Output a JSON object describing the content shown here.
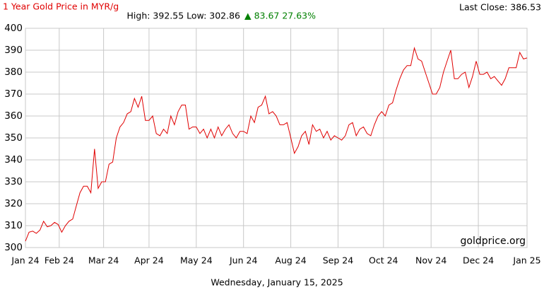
{
  "chart_data": {
    "type": "line",
    "title": "1 Year Gold Price in MYR/g",
    "last_close": "Last Close: 386.53",
    "high_low": "High: 392.55 Low: 302.86",
    "change": "▲ 83.67 27.63%",
    "watermark": "goldprice.org",
    "date": "Wednesday, January 15, 2025",
    "color": "#e00000",
    "grid": true,
    "values": [
      302.9,
      307,
      307.5,
      306.5,
      308,
      312,
      309.5,
      310,
      311.5,
      310.5,
      307,
      310,
      312,
      313,
      319,
      325,
      328,
      328,
      325,
      345,
      327,
      330,
      330,
      338,
      339,
      350,
      355,
      357,
      361,
      362,
      368,
      364,
      369,
      358,
      358,
      360,
      352,
      351,
      354,
      352,
      360,
      356,
      362,
      365,
      365,
      354,
      355,
      355,
      352,
      354,
      350,
      354,
      350,
      355,
      351,
      354,
      356,
      352,
      350,
      353,
      353,
      352,
      360,
      357,
      364,
      365,
      369,
      361,
      362,
      360,
      356,
      356,
      357,
      350,
      343,
      346,
      351,
      353,
      347,
      356,
      353,
      354,
      350,
      353,
      349,
      351,
      350,
      349,
      351,
      356,
      357,
      351,
      354,
      355,
      352,
      351,
      356,
      360,
      362,
      360,
      365,
      366,
      372,
      377,
      381,
      383,
      383,
      391,
      386,
      385,
      380,
      375,
      370,
      370,
      373,
      380,
      385,
      390,
      377,
      377,
      379,
      380,
      373,
      378,
      385,
      379,
      379,
      380,
      377,
      378,
      376,
      374,
      377,
      382,
      382,
      382,
      389,
      386,
      386.5
    ],
    "xlim": [
      0,
      138
    ],
    "xticks": [
      {
        "value": 0,
        "label": "Jan 24"
      },
      {
        "value": 9.3,
        "label": "Feb 24"
      },
      {
        "value": 21.5,
        "label": "Mar 24"
      },
      {
        "value": 34,
        "label": "Apr 24"
      },
      {
        "value": 47,
        "label": "May 24"
      },
      {
        "value": 60,
        "label": "Jun 24"
      },
      {
        "value": 73,
        "label": "Aug 24"
      },
      {
        "value": 86,
        "label": "Sep 24"
      },
      {
        "value": 98.5,
        "label": "Oct 24"
      },
      {
        "value": 111.6,
        "label": "Nov 24"
      },
      {
        "value": 124.6,
        "label": "Dec 24"
      },
      {
        "value": 138,
        "label": "Jan 25"
      }
    ],
    "ylim": [
      300,
      400
    ],
    "yticks": [
      300,
      310,
      320,
      330,
      340,
      350,
      360,
      370,
      380,
      390,
      400
    ]
  }
}
